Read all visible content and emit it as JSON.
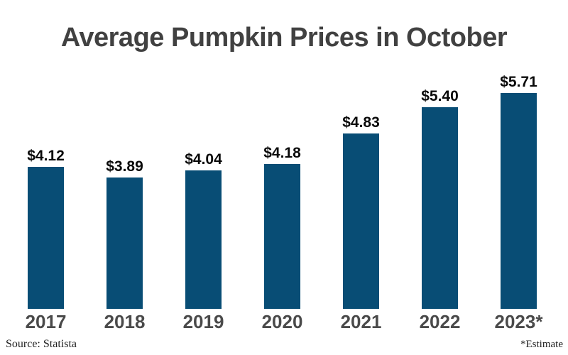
{
  "chart_data": {
    "type": "bar",
    "title": "Average Pumpkin Prices in October",
    "categories": [
      "2017",
      "2018",
      "2019",
      "2020",
      "2021",
      "2022",
      "2023*"
    ],
    "values": [
      4.12,
      3.89,
      4.04,
      4.18,
      4.83,
      5.4,
      5.71
    ],
    "value_labels": [
      "$4.12",
      "$3.89",
      "$4.04",
      "$4.18",
      "$4.83",
      "$5.40",
      "$5.71"
    ],
    "unit": "USD per pumpkin",
    "ylim": [
      1.05,
      6.1
    ],
    "gridlines": false,
    "legend": "none",
    "bar_color": "#084d75",
    "title_color": "#414141",
    "value_label_color": "#0a0a0a",
    "category_label_color": "#4a4a4a"
  },
  "footer": {
    "source": "Source: Statista",
    "footnote": "*Estimate"
  }
}
